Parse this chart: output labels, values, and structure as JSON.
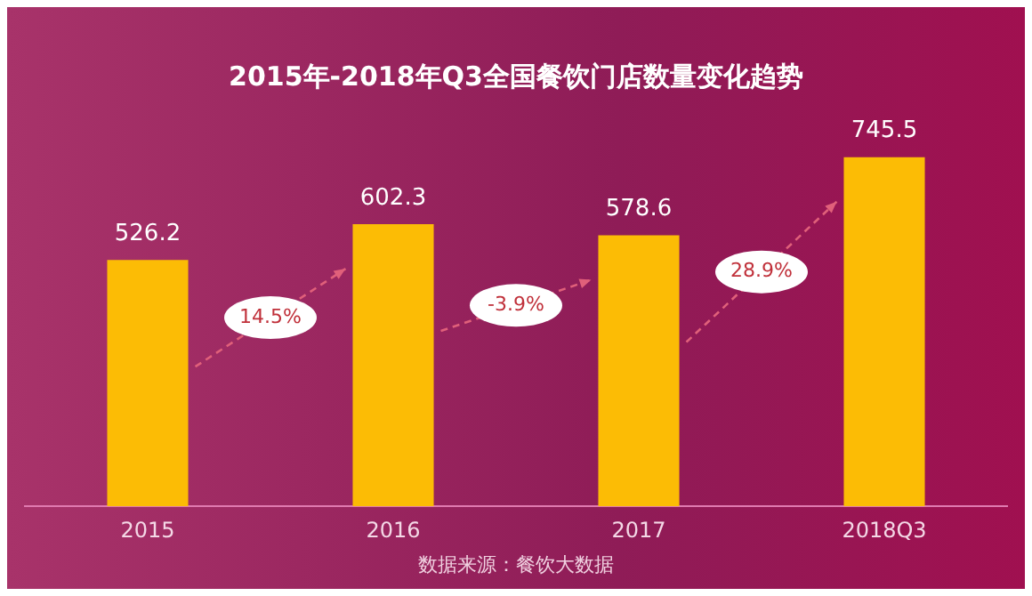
{
  "chart_data": {
    "type": "bar",
    "title": "2015年-2018年Q3全国餐饮门店数量变化趋势",
    "categories": [
      "2015",
      "2016",
      "2017",
      "2018Q3"
    ],
    "values": [
      526.2,
      602.3,
      578.6,
      745.5
    ],
    "color": "#fcbc05",
    "data_labels": true,
    "tick_labels": "x",
    "grid": false,
    "legend": false,
    "annotations": [
      "14.5%",
      "-3.9%",
      "28.9%",
      "数据来源：餐饮大数据"
    ]
  }
}
